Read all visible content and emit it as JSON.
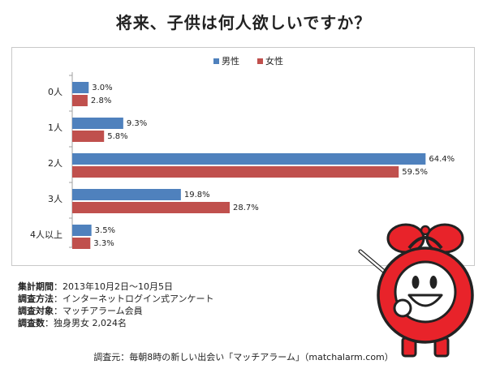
{
  "title": "将来、子供は何人欲しいですか？",
  "chart_data": {
    "type": "bar",
    "orientation": "horizontal",
    "categories": [
      "0人",
      "1人",
      "2人",
      "3人",
      "4人以上"
    ],
    "series": [
      {
        "name": "男性",
        "color": "#4f81bd",
        "values": [
          3.0,
          9.3,
          64.4,
          19.8,
          3.5
        ],
        "labels": [
          "3.0%",
          "9.3%",
          "64.4%",
          "19.8%",
          "3.5%"
        ]
      },
      {
        "name": "女性",
        "color": "#c0504d",
        "values": [
          2.8,
          5.8,
          59.5,
          28.7,
          3.3
        ],
        "labels": [
          "2.8%",
          "5.8%",
          "59.5%",
          "28.7%",
          "3.3%"
        ]
      }
    ],
    "xlim": [
      0,
      70
    ],
    "grid": false,
    "legend_position": "top-center"
  },
  "notes": [
    {
      "label": "集計期間",
      "sep": "：",
      "value": "2013年10月2日〜10月5日"
    },
    {
      "label": "調査方法",
      "sep": "：",
      "value": "インターネットログイン式アンケート"
    },
    {
      "label": "調査対象",
      "sep": "：",
      "value": "マッチアラーム会員"
    },
    {
      "label": "調査数",
      "sep": "：",
      "value": "独身男女 2,024名"
    }
  ],
  "footer": "調査元：毎朝8時の新しい出会い「マッチアラーム」（matchalarm.com）",
  "mascot": {
    "icon": "alarm-clock-mascot-icon",
    "color": "#e8232a"
  }
}
